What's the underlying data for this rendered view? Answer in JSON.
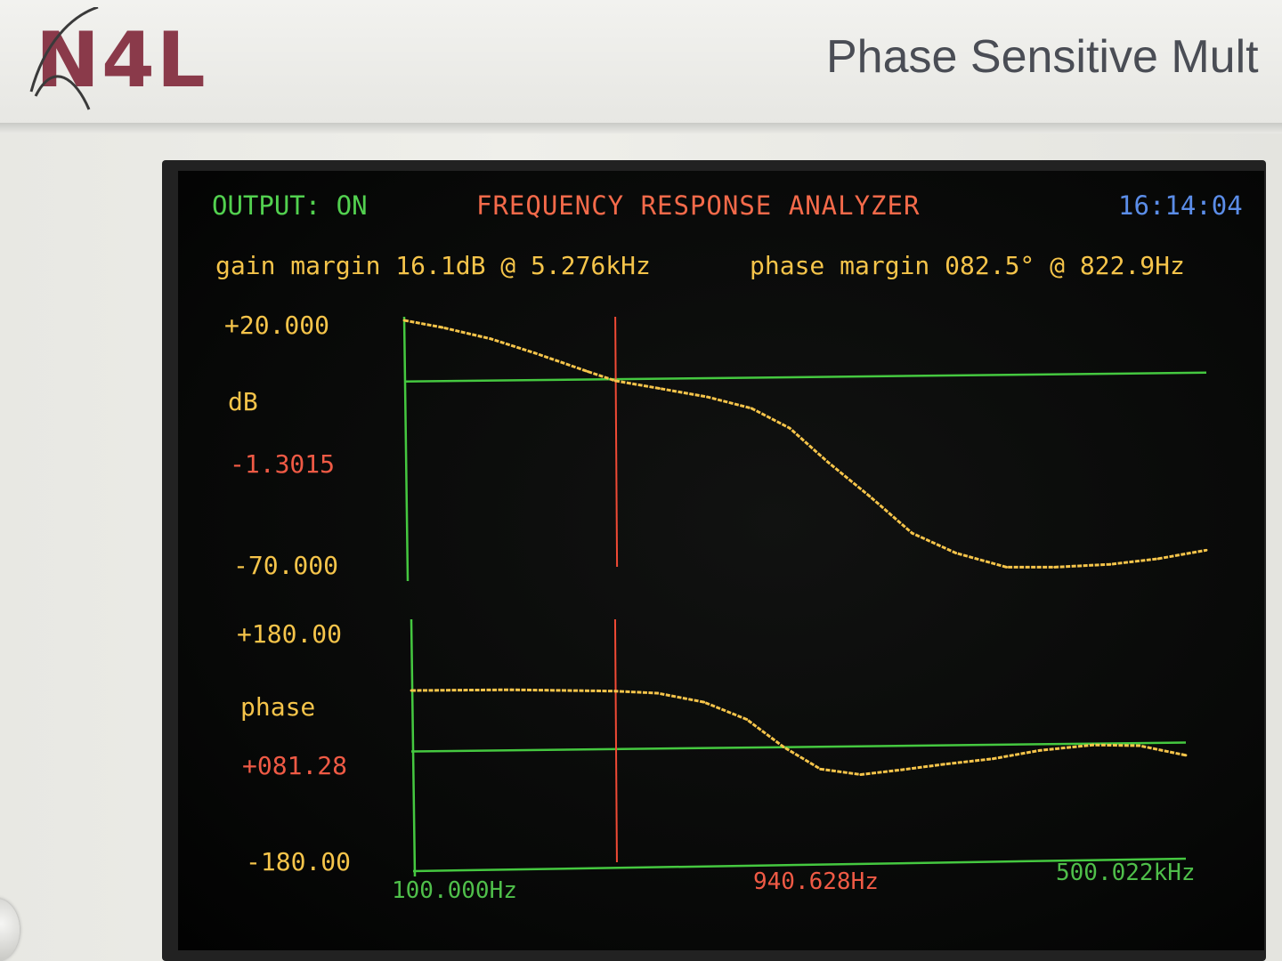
{
  "brand": {
    "logo_text": "N4L"
  },
  "panel": {
    "title": "Phase Sensitive Mult"
  },
  "screen": {
    "output_status": "OUTPUT: ON",
    "title": "FREQUENCY RESPONSE ANALYZER",
    "clock": "16:14:04",
    "gain_margin": "gain margin 16.1dB @ 5.276kHz",
    "phase_margin": "phase margin 082.5° @ 822.9Hz"
  },
  "gain_axis": {
    "max_label": "+20.000",
    "unit_label": "dB",
    "cursor_label": "-1.3015",
    "min_label": "-70.000"
  },
  "phase_axis": {
    "max_label": "+180.00",
    "unit_label": "phase",
    "cursor_label": "+081.28",
    "min_label": "-180.00"
  },
  "frequency_axis": {
    "start_label": "100.000Hz",
    "cursor_label": "940.628Hz",
    "end_label": "500.022kHz"
  },
  "colors": {
    "trace": "#f5c44a",
    "reference_line": "#45c840",
    "cursor": "#f04a35",
    "clock": "#5b8de8"
  },
  "chart_data": [
    {
      "type": "line",
      "title": "",
      "ylabel": "dB",
      "x_scale": "log",
      "xlim": [
        100,
        500022
      ],
      "ylim": [
        -70,
        20
      ],
      "reference_line_y": 0,
      "cursor_x": 940.628,
      "series": [
        {
          "x": [
            100,
            150,
            250,
            400,
            700,
            940.628,
            1500,
            2500,
            4000,
            6000,
            9000,
            14000,
            22000,
            35000,
            60000,
            100000,
            180000,
            300000,
            500022
          ],
          "y": [
            20,
            17.5,
            13.5,
            8.5,
            2,
            -1.3,
            -4,
            -7,
            -11,
            -18,
            -30,
            -42,
            -55,
            -62,
            -67,
            -67,
            -66,
            -64,
            -61
          ]
        }
      ]
    },
    {
      "type": "line",
      "title": "",
      "ylabel": "phase",
      "x_scale": "log",
      "xlim": [
        100,
        500022
      ],
      "ylim": [
        -180,
        180
      ],
      "reference_line_y": 0,
      "cursor_x": 940.628,
      "series": [
        {
          "x": [
            100,
            300,
            940.628,
            1500,
            2500,
            4000,
            6000,
            9000,
            14000,
            22000,
            35000,
            60000,
            100000,
            180000,
            300000,
            500022
          ],
          "y": [
            82,
            83,
            81,
            78,
            65,
            40,
            0,
            -32,
            -40,
            -33,
            -25,
            -17,
            -5,
            3,
            2,
            -12
          ]
        }
      ]
    }
  ]
}
